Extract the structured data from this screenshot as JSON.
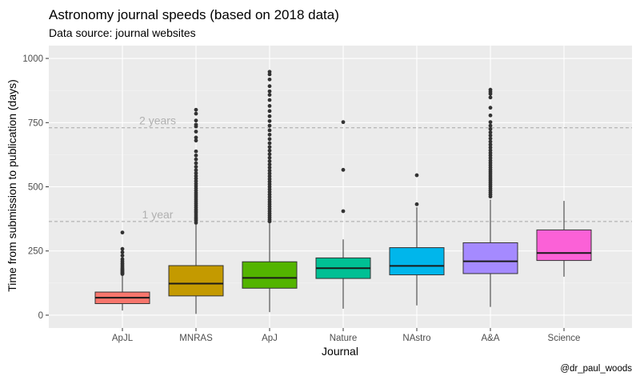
{
  "chart_data": {
    "type": "boxplot",
    "title": "Astronomy journal speeds (based on 2018 data)",
    "subtitle": "Data source: journal websites",
    "xlabel": "Journal",
    "ylabel": "Time from submission to publication (days)",
    "caption": "@dr_paul_woods",
    "ylim": [
      -50,
      1050
    ],
    "yticks": [
      0,
      250,
      500,
      750,
      1000
    ],
    "ytick_labels": [
      "0",
      "250",
      "500",
      "750",
      "1000"
    ],
    "reference_lines": [
      {
        "value": 365,
        "label": "1 year"
      },
      {
        "value": 730,
        "label": "2 years"
      }
    ],
    "categories": [
      "ApJL",
      "MNRAS",
      "ApJ",
      "Nature",
      "NAstro",
      "A&A",
      "Science"
    ],
    "boxes": [
      {
        "name": "ApJL",
        "color": "#F8766D",
        "whisker_low": 18,
        "q1": 45,
        "median": 68,
        "q3": 90,
        "whisker_high": 155,
        "outliers": [
          160,
          163,
          166,
          170,
          174,
          178,
          182,
          188,
          195,
          202,
          210,
          218,
          232,
          245,
          258,
          322
        ]
      },
      {
        "name": "MNRAS",
        "color": "#C49A00",
        "whisker_low": 5,
        "q1": 75,
        "median": 123,
        "q3": 193,
        "whisker_high": 355,
        "outliers": [
          360,
          368,
          375,
          382,
          390,
          398,
          405,
          412,
          420,
          428,
          436,
          444,
          452,
          460,
          468,
          476,
          485,
          494,
          503,
          512,
          522,
          532,
          542,
          553,
          565,
          578,
          592,
          607,
          622,
          638,
          680,
          692,
          715,
          735,
          742,
          758,
          785,
          800
        ]
      },
      {
        "name": "ApJ",
        "color": "#53B400",
        "whisker_low": 12,
        "q1": 105,
        "median": 145,
        "q3": 208,
        "whisker_high": 358,
        "outliers": [
          365,
          372,
          380,
          388,
          396,
          405,
          414,
          423,
          432,
          441,
          450,
          460,
          470,
          480,
          490,
          500,
          510,
          520,
          530,
          541,
          552,
          563,
          575,
          587,
          600,
          613,
          627,
          641,
          655,
          670,
          686,
          703,
          720,
          738,
          756,
          775,
          795,
          815,
          838,
          858,
          872,
          892,
          918,
          938,
          948
        ]
      },
      {
        "name": "Nature",
        "color": "#00C094",
        "whisker_low": 25,
        "q1": 143,
        "median": 183,
        "q3": 223,
        "whisker_high": 295,
        "outliers": [
          405,
          566,
          752
        ]
      },
      {
        "name": "NAstro",
        "color": "#00B6EB",
        "whisker_low": 38,
        "q1": 157,
        "median": 192,
        "q3": 263,
        "whisker_high": 420,
        "outliers": [
          432,
          545
        ]
      },
      {
        "name": "A&A",
        "color": "#A58AFF",
        "whisker_low": 32,
        "q1": 162,
        "median": 210,
        "q3": 282,
        "whisker_high": 450,
        "outliers": [
          462,
          470,
          478,
          486,
          494,
          502,
          510,
          518,
          526,
          534,
          542,
          550,
          558,
          566,
          575,
          584,
          593,
          602,
          612,
          622,
          632,
          642,
          653,
          664,
          676,
          688,
          700,
          712,
          725,
          738,
          752,
          778,
          808,
          848,
          862,
          870,
          878
        ]
      },
      {
        "name": "Science",
        "color": "#FB61D7",
        "whisker_low": 150,
        "q1": 213,
        "median": 242,
        "q3": 332,
        "whisker_high": 445,
        "outliers": []
      }
    ]
  }
}
